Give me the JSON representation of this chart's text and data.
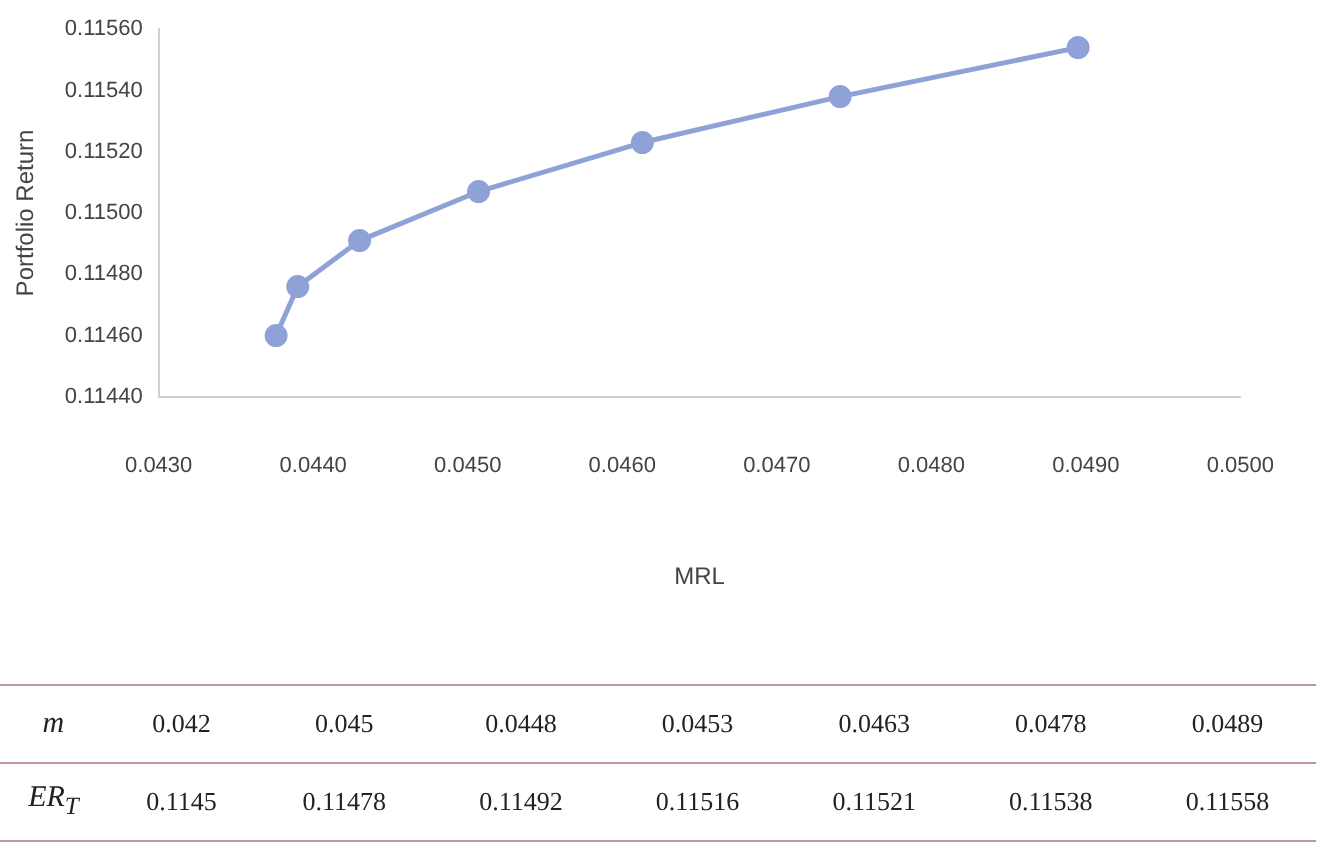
{
  "chart_data": {
    "type": "line",
    "xlabel": "MRL",
    "ylabel": "Portfolio Return",
    "x": [
      0.04376,
      0.0439,
      0.0443,
      0.04507,
      0.04613,
      0.04741,
      0.04895
    ],
    "series": [
      {
        "color": "#8fa2d8",
        "values": [
          0.1146,
          0.11476,
          0.11491,
          0.11507,
          0.11523,
          0.11538,
          0.11554
        ]
      }
    ],
    "xlim": [
      0.043,
      0.05
    ],
    "xticks": [
      {
        "value": 0.043,
        "label": "0.0430"
      },
      {
        "value": 0.044,
        "label": "0.0440"
      },
      {
        "value": 0.045,
        "label": "0.0450"
      },
      {
        "value": 0.046,
        "label": "0.0460"
      },
      {
        "value": 0.047,
        "label": "0.0470"
      },
      {
        "value": 0.048,
        "label": "0.0480"
      },
      {
        "value": 0.049,
        "label": "0.0490"
      },
      {
        "value": 0.05,
        "label": "0.0500"
      }
    ],
    "ylim": [
      0.1144,
      0.1156
    ],
    "yticks": [
      {
        "value": 0.1144,
        "label": "0.11440"
      },
      {
        "value": 0.1146,
        "label": "0.11460"
      },
      {
        "value": 0.1148,
        "label": "0.11480"
      },
      {
        "value": 0.115,
        "label": "0.11500"
      },
      {
        "value": 0.1152,
        "label": "0.11520"
      },
      {
        "value": 0.1154,
        "label": "0.11540"
      },
      {
        "value": 0.1156,
        "label": "0.11560"
      }
    ],
    "grid": false,
    "legend": false,
    "marker": "circle",
    "line_style": "solid",
    "annotations": [
      "m",
      "0.042",
      "0.045",
      "0.0448",
      "0.0453",
      "0.0463",
      "0.0478",
      "0.0489",
      "ER$_{T}$",
      "0.1145",
      "0.11478",
      "0.11492",
      "0.11516",
      "0.11521",
      "0.11538",
      "0.11558"
    ]
  }
}
